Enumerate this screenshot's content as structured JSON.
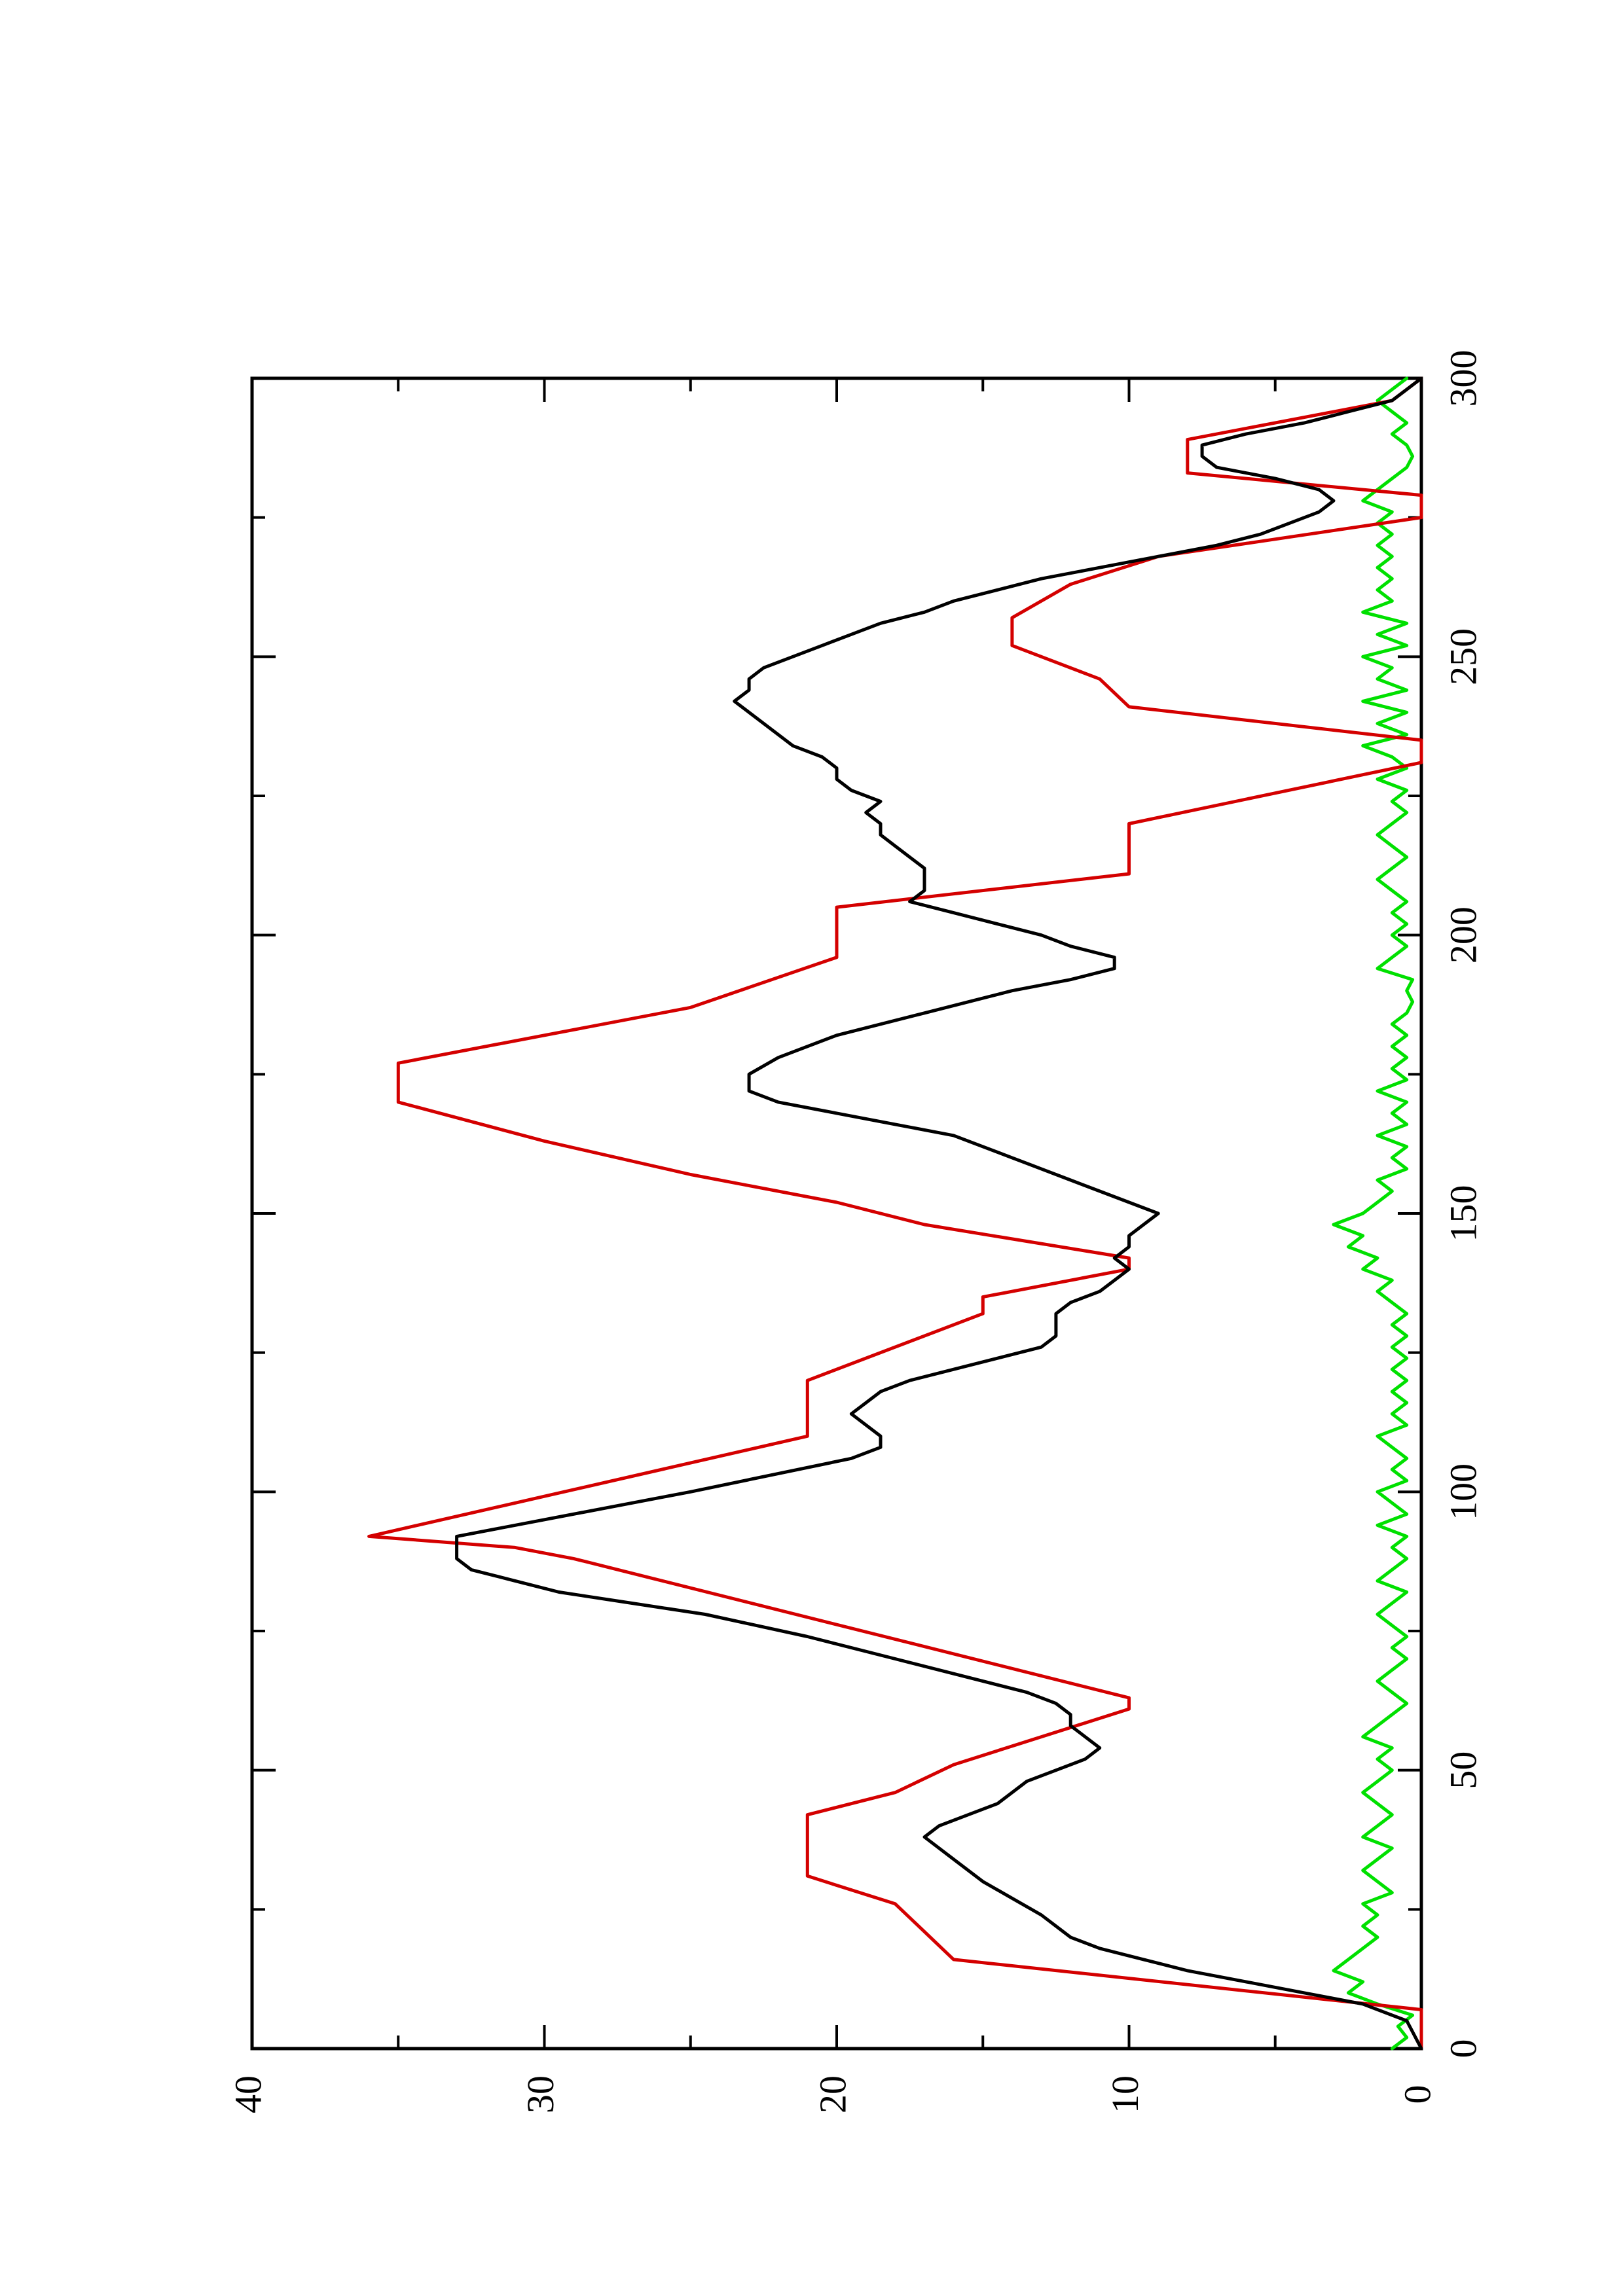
{
  "chart_data": {
    "type": "line",
    "orientation": "rotated 90 degrees counter-clockwise (x axis runs bottom-to-top on the right edge, y axis runs right-to-left along the bottom)",
    "title": "",
    "xlabel": "",
    "ylabel": "",
    "xlim": [
      0,
      300
    ],
    "ylim": [
      0,
      40
    ],
    "x_ticks": [
      "0",
      "50",
      "100",
      "150",
      "200",
      "250",
      "300"
    ],
    "y_ticks": [
      "0",
      "10",
      "20",
      "30",
      "40"
    ],
    "grid": false,
    "legend": "none",
    "series": [
      {
        "color": "#d40000",
        "style": "step-line",
        "points": [
          [
            0,
            0
          ],
          [
            7,
            0
          ],
          [
            16,
            16
          ],
          [
            26,
            18
          ],
          [
            31,
            21
          ],
          [
            42,
            21
          ],
          [
            46,
            18
          ],
          [
            51,
            16
          ],
          [
            61,
            10
          ],
          [
            63,
            10
          ],
          [
            88,
            29
          ],
          [
            90,
            31
          ],
          [
            92,
            36
          ],
          [
            110,
            21
          ],
          [
            120,
            21
          ],
          [
            132,
            15
          ],
          [
            135,
            15
          ],
          [
            140,
            10
          ],
          [
            142,
            10
          ],
          [
            148,
            17
          ],
          [
            152,
            20
          ],
          [
            157,
            25
          ],
          [
            163,
            30
          ],
          [
            170,
            35
          ],
          [
            177,
            35
          ],
          [
            187,
            25
          ],
          [
            196,
            20
          ],
          [
            205,
            20
          ],
          [
            211,
            10
          ],
          [
            220,
            10
          ],
          [
            231,
            0
          ],
          [
            235,
            0
          ],
          [
            241,
            10
          ],
          [
            246,
            11
          ],
          [
            252,
            14
          ],
          [
            257,
            14
          ],
          [
            263,
            12
          ],
          [
            268,
            9
          ],
          [
            275,
            0
          ],
          [
            279,
            0
          ],
          [
            283,
            8
          ],
          [
            289,
            8
          ],
          [
            296,
            1
          ],
          [
            300,
            0
          ]
        ]
      },
      {
        "color": "#000000",
        "style": "line",
        "points": [
          [
            0,
            0
          ],
          [
            5,
            0.5
          ],
          [
            8,
            2
          ],
          [
            10,
            4
          ],
          [
            12,
            6
          ],
          [
            14,
            8
          ],
          [
            16,
            9.5
          ],
          [
            18,
            11
          ],
          [
            20,
            12
          ],
          [
            22,
            12.5
          ],
          [
            24,
            13
          ],
          [
            27,
            14
          ],
          [
            30,
            15
          ],
          [
            34,
            16
          ],
          [
            38,
            17
          ],
          [
            40,
            16.5
          ],
          [
            42,
            15.5
          ],
          [
            44,
            14.5
          ],
          [
            46,
            14
          ],
          [
            48,
            13.5
          ],
          [
            50,
            12.5
          ],
          [
            52,
            11.5
          ],
          [
            54,
            11
          ],
          [
            56,
            11.5
          ],
          [
            58,
            12
          ],
          [
            60,
            12
          ],
          [
            62,
            12.5
          ],
          [
            64,
            13.5
          ],
          [
            66,
            15
          ],
          [
            70,
            18
          ],
          [
            74,
            21
          ],
          [
            78,
            24.5
          ],
          [
            80,
            27
          ],
          [
            82,
            29.5
          ],
          [
            84,
            31
          ],
          [
            86,
            32.5
          ],
          [
            88,
            33
          ],
          [
            90,
            33
          ],
          [
            92,
            33
          ],
          [
            100,
            25
          ],
          [
            106,
            19.5
          ],
          [
            108,
            18.5
          ],
          [
            110,
            18.5
          ],
          [
            112,
            19
          ],
          [
            114,
            19.5
          ],
          [
            116,
            19
          ],
          [
            118,
            18.5
          ],
          [
            120,
            17.5
          ],
          [
            122,
            16
          ],
          [
            124,
            14.5
          ],
          [
            126,
            13
          ],
          [
            128,
            12.5
          ],
          [
            132,
            12.5
          ],
          [
            134,
            12
          ],
          [
            136,
            11
          ],
          [
            138,
            10.5
          ],
          [
            140,
            10
          ],
          [
            142,
            10.5
          ],
          [
            144,
            10
          ],
          [
            146,
            10
          ],
          [
            148,
            9.5
          ],
          [
            150,
            9
          ],
          [
            152,
            10
          ],
          [
            154,
            11
          ],
          [
            156,
            12
          ],
          [
            158,
            13
          ],
          [
            160,
            14
          ],
          [
            162,
            15
          ],
          [
            164,
            16
          ],
          [
            166,
            18
          ],
          [
            168,
            20
          ],
          [
            170,
            22
          ],
          [
            172,
            23
          ],
          [
            175,
            23
          ],
          [
            178,
            22
          ],
          [
            182,
            20
          ],
          [
            186,
            17
          ],
          [
            190,
            14
          ],
          [
            192,
            12
          ],
          [
            194,
            10.5
          ],
          [
            196,
            10.5
          ],
          [
            198,
            12
          ],
          [
            200,
            13
          ],
          [
            202,
            14.5
          ],
          [
            204,
            16
          ],
          [
            206,
            17.5
          ],
          [
            208,
            17
          ],
          [
            210,
            17
          ],
          [
            212,
            17
          ],
          [
            214,
            17.5
          ],
          [
            216,
            18
          ],
          [
            218,
            18.5
          ],
          [
            220,
            18.5
          ],
          [
            222,
            19
          ],
          [
            224,
            18.5
          ],
          [
            226,
            19.5
          ],
          [
            228,
            20
          ],
          [
            230,
            20
          ],
          [
            232,
            20.5
          ],
          [
            234,
            21.5
          ],
          [
            236,
            22
          ],
          [
            238,
            22.5
          ],
          [
            240,
            23
          ],
          [
            242,
            23.5
          ],
          [
            244,
            23
          ],
          [
            246,
            23
          ],
          [
            248,
            22.5
          ],
          [
            250,
            21.5
          ],
          [
            252,
            20.5
          ],
          [
            254,
            19.5
          ],
          [
            256,
            18.5
          ],
          [
            258,
            17
          ],
          [
            260,
            16
          ],
          [
            262,
            14.5
          ],
          [
            264,
            13
          ],
          [
            266,
            11
          ],
          [
            268,
            9
          ],
          [
            270,
            7
          ],
          [
            272,
            5.5
          ],
          [
            274,
            4.5
          ],
          [
            276,
            3.5
          ],
          [
            278,
            3
          ],
          [
            280,
            3.5
          ],
          [
            282,
            5
          ],
          [
            284,
            7
          ],
          [
            286,
            7.5
          ],
          [
            288,
            7.5
          ],
          [
            290,
            6
          ],
          [
            292,
            4
          ],
          [
            294,
            2.5
          ],
          [
            296,
            1
          ],
          [
            298,
            0.5
          ],
          [
            300,
            0
          ]
        ]
      },
      {
        "color": "#00e000",
        "style": "noisy-line",
        "points": [
          [
            0,
            1
          ],
          [
            2,
            0.5
          ],
          [
            4,
            0.8
          ],
          [
            6,
            0.3
          ],
          [
            8,
            1.5
          ],
          [
            10,
            2.5
          ],
          [
            12,
            2
          ],
          [
            14,
            3
          ],
          [
            16,
            2.5
          ],
          [
            18,
            2
          ],
          [
            20,
            1.5
          ],
          [
            22,
            2
          ],
          [
            24,
            1.5
          ],
          [
            26,
            2
          ],
          [
            28,
            1
          ],
          [
            30,
            1.5
          ],
          [
            32,
            2
          ],
          [
            34,
            1.5
          ],
          [
            36,
            1
          ],
          [
            38,
            2
          ],
          [
            40,
            1.5
          ],
          [
            42,
            1
          ],
          [
            44,
            1.5
          ],
          [
            46,
            2
          ],
          [
            48,
            1.5
          ],
          [
            50,
            1
          ],
          [
            52,
            1.5
          ],
          [
            54,
            1
          ],
          [
            56,
            2
          ],
          [
            58,
            1.5
          ],
          [
            60,
            1
          ],
          [
            62,
            0.5
          ],
          [
            64,
            1
          ],
          [
            66,
            1.5
          ],
          [
            68,
            1
          ],
          [
            70,
            0.5
          ],
          [
            72,
            1
          ],
          [
            74,
            0.5
          ],
          [
            76,
            1
          ],
          [
            78,
            1.5
          ],
          [
            80,
            1
          ],
          [
            82,
            0.5
          ],
          [
            84,
            1.5
          ],
          [
            86,
            1
          ],
          [
            88,
            0.5
          ],
          [
            90,
            1
          ],
          [
            92,
            0.5
          ],
          [
            94,
            1.5
          ],
          [
            96,
            0.5
          ],
          [
            98,
            1
          ],
          [
            100,
            1.5
          ],
          [
            102,
            0.5
          ],
          [
            104,
            1
          ],
          [
            106,
            0.5
          ],
          [
            108,
            1
          ],
          [
            110,
            1.5
          ],
          [
            112,
            0.5
          ],
          [
            114,
            1
          ],
          [
            116,
            0.5
          ],
          [
            118,
            1
          ],
          [
            120,
            0.5
          ],
          [
            122,
            1
          ],
          [
            124,
            0.5
          ],
          [
            126,
            1
          ],
          [
            128,
            0.5
          ],
          [
            130,
            1
          ],
          [
            132,
            0.5
          ],
          [
            134,
            1
          ],
          [
            136,
            1.5
          ],
          [
            138,
            1
          ],
          [
            140,
            2
          ],
          [
            142,
            1.5
          ],
          [
            144,
            2.5
          ],
          [
            146,
            2
          ],
          [
            148,
            3
          ],
          [
            150,
            2
          ],
          [
            152,
            1.5
          ],
          [
            154,
            1
          ],
          [
            156,
            1.5
          ],
          [
            158,
            0.5
          ],
          [
            160,
            1
          ],
          [
            162,
            0.5
          ],
          [
            164,
            1.5
          ],
          [
            166,
            0.5
          ],
          [
            168,
            1
          ],
          [
            170,
            0.5
          ],
          [
            172,
            1.5
          ],
          [
            174,
            0.5
          ],
          [
            176,
            1
          ],
          [
            178,
            0.5
          ],
          [
            180,
            1
          ],
          [
            182,
            0.5
          ],
          [
            184,
            1
          ],
          [
            186,
            0.5
          ],
          [
            188,
            0.3
          ],
          [
            190,
            0.5
          ],
          [
            192,
            0.3
          ],
          [
            194,
            1.5
          ],
          [
            196,
            1
          ],
          [
            198,
            0.5
          ],
          [
            200,
            1
          ],
          [
            202,
            0.5
          ],
          [
            204,
            1
          ],
          [
            206,
            0.5
          ],
          [
            208,
            1
          ],
          [
            210,
            1.5
          ],
          [
            212,
            1
          ],
          [
            214,
            0.5
          ],
          [
            216,
            1
          ],
          [
            218,
            1.5
          ],
          [
            220,
            1
          ],
          [
            222,
            0.5
          ],
          [
            224,
            1
          ],
          [
            226,
            0.5
          ],
          [
            228,
            1.5
          ],
          [
            230,
            0.5
          ],
          [
            232,
            1
          ],
          [
            234,
            2
          ],
          [
            236,
            0.5
          ],
          [
            238,
            1.5
          ],
          [
            240,
            0.5
          ],
          [
            242,
            2
          ],
          [
            244,
            0.5
          ],
          [
            246,
            1.5
          ],
          [
            248,
            1
          ],
          [
            250,
            2
          ],
          [
            252,
            0.5
          ],
          [
            254,
            1.5
          ],
          [
            256,
            0.5
          ],
          [
            258,
            2
          ],
          [
            260,
            1
          ],
          [
            262,
            1.5
          ],
          [
            264,
            1
          ],
          [
            266,
            1.5
          ],
          [
            268,
            1
          ],
          [
            270,
            1.5
          ],
          [
            272,
            1
          ],
          [
            274,
            1.5
          ],
          [
            276,
            1
          ],
          [
            278,
            2
          ],
          [
            280,
            1.5
          ],
          [
            282,
            1
          ],
          [
            284,
            0.5
          ],
          [
            286,
            0.3
          ],
          [
            288,
            0.5
          ],
          [
            290,
            1
          ],
          [
            292,
            0.5
          ],
          [
            294,
            1
          ],
          [
            296,
            1.5
          ],
          [
            298,
            1
          ],
          [
            300,
            0.5
          ]
        ]
      }
    ]
  }
}
